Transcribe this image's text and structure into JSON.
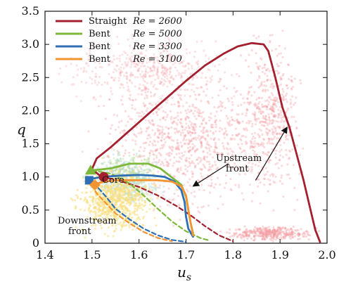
{
  "chart_data": {
    "type": "line",
    "xlabel": "u_s",
    "ylabel": "q",
    "xlim": [
      1.4,
      2.0
    ],
    "ylim": [
      0,
      3.5
    ],
    "xticks": [
      "1.4",
      "1.5",
      "1.6",
      "1.7",
      "1.8",
      "1.9",
      "2.0"
    ],
    "yticks": [
      "0",
      "0.5",
      "1.0",
      "1.5",
      "2.0",
      "2.5",
      "3.0",
      "3.5"
    ],
    "legend_position": "top-left",
    "legend": [
      {
        "type": "Straight",
        "re": "Re = 2600",
        "color": "#a3202f"
      },
      {
        "type": "Bent",
        "re": "Re = 5000",
        "color": "#7db83a"
      },
      {
        "type": "Bent",
        "re": "Re = 3300",
        "color": "#2f6fb5"
      },
      {
        "type": "Bent",
        "re": "Re = 3100",
        "color": "#f39432"
      }
    ],
    "annotations": {
      "core": "Core",
      "upstream_line1": "Upstream",
      "upstream_line2": "front",
      "downstream_line1": "Downstream",
      "downstream_line2": "front"
    },
    "background_colors": {
      "straight": "#f29aa0",
      "bent_a": "#f7df7d",
      "bent_b": "#9fd6e6",
      "bent_c": "#b9dc9b"
    },
    "series": [
      {
        "name": "Straight Re = 2600",
        "color": "#a3202f",
        "style": "solid",
        "points": [
          [
            1.52,
            1.0
          ],
          [
            1.5,
            1.12
          ],
          [
            1.51,
            1.28
          ],
          [
            1.54,
            1.45
          ],
          [
            1.58,
            1.7
          ],
          [
            1.62,
            1.95
          ],
          [
            1.66,
            2.2
          ],
          [
            1.7,
            2.45
          ],
          [
            1.74,
            2.68
          ],
          [
            1.78,
            2.86
          ],
          [
            1.81,
            2.97
          ],
          [
            1.84,
            3.02
          ],
          [
            1.865,
            3.0
          ],
          [
            1.875,
            2.9
          ],
          [
            1.89,
            2.5
          ],
          [
            1.905,
            2.05
          ],
          [
            1.92,
            1.75
          ],
          [
            1.935,
            1.35
          ],
          [
            1.95,
            0.95
          ],
          [
            1.965,
            0.5
          ],
          [
            1.975,
            0.2
          ],
          [
            1.985,
            0.02
          ]
        ]
      },
      {
        "name": "Straight Re = 2600",
        "color": "#a3202f",
        "style": "dashed",
        "points": [
          [
            1.52,
            1.0
          ],
          [
            1.55,
            0.96
          ],
          [
            1.6,
            0.85
          ],
          [
            1.64,
            0.72
          ],
          [
            1.68,
            0.56
          ],
          [
            1.71,
            0.42
          ],
          [
            1.74,
            0.26
          ],
          [
            1.77,
            0.12
          ],
          [
            1.8,
            0.03
          ]
        ]
      },
      {
        "name": "Bent Re = 5000",
        "color": "#7db83a",
        "style": "solid",
        "points": [
          [
            1.5,
            1.1
          ],
          [
            1.54,
            1.13
          ],
          [
            1.58,
            1.2
          ],
          [
            1.62,
            1.2
          ],
          [
            1.645,
            1.13
          ],
          [
            1.665,
            1.02
          ],
          [
            1.69,
            0.88
          ],
          [
            1.7,
            0.7
          ],
          [
            1.705,
            0.5
          ],
          [
            1.71,
            0.3
          ],
          [
            1.715,
            0.15
          ]
        ]
      },
      {
        "name": "Bent Re = 5000",
        "color": "#7db83a",
        "style": "dashed",
        "points": [
          [
            1.5,
            1.1
          ],
          [
            1.54,
            1.05
          ],
          [
            1.58,
            0.9
          ],
          [
            1.61,
            0.72
          ],
          [
            1.64,
            0.52
          ],
          [
            1.67,
            0.33
          ],
          [
            1.7,
            0.18
          ],
          [
            1.73,
            0.08
          ],
          [
            1.75,
            0.04
          ]
        ]
      },
      {
        "name": "Bent Re = 3300",
        "color": "#2f6fb5",
        "style": "solid",
        "points": [
          [
            1.49,
            0.96
          ],
          [
            1.52,
            1.0
          ],
          [
            1.56,
            1.02
          ],
          [
            1.6,
            1.03
          ],
          [
            1.63,
            1.02
          ],
          [
            1.655,
            1.0
          ],
          [
            1.675,
            0.93
          ],
          [
            1.69,
            0.8
          ],
          [
            1.697,
            0.62
          ],
          [
            1.7,
            0.4
          ],
          [
            1.705,
            0.22
          ],
          [
            1.715,
            0.1
          ]
        ]
      },
      {
        "name": "Bent Re = 3300",
        "color": "#2f6fb5",
        "style": "dashed",
        "points": [
          [
            1.49,
            0.96
          ],
          [
            1.51,
            0.86
          ],
          [
            1.53,
            0.7
          ],
          [
            1.55,
            0.52
          ],
          [
            1.58,
            0.36
          ],
          [
            1.61,
            0.22
          ],
          [
            1.64,
            0.12
          ],
          [
            1.67,
            0.05
          ],
          [
            1.7,
            0.02
          ]
        ]
      },
      {
        "name": "Bent Re = 3100",
        "color": "#f39432",
        "style": "solid",
        "points": [
          [
            1.5,
            0.88
          ],
          [
            1.52,
            0.92
          ],
          [
            1.55,
            0.95
          ],
          [
            1.6,
            0.95
          ],
          [
            1.64,
            0.95
          ],
          [
            1.67,
            0.93
          ],
          [
            1.69,
            0.86
          ],
          [
            1.7,
            0.72
          ],
          [
            1.705,
            0.5
          ],
          [
            1.71,
            0.3
          ],
          [
            1.715,
            0.12
          ]
        ]
      },
      {
        "name": "Bent Re = 3100",
        "color": "#f39432",
        "style": "dashed",
        "points": [
          [
            1.5,
            0.88
          ],
          [
            1.51,
            0.75
          ],
          [
            1.53,
            0.6
          ],
          [
            1.55,
            0.45
          ],
          [
            1.58,
            0.3
          ],
          [
            1.61,
            0.17
          ],
          [
            1.64,
            0.08
          ],
          [
            1.67,
            0.03
          ]
        ]
      }
    ],
    "markers": [
      {
        "shape": "circle",
        "x": 1.525,
        "y": 1.0,
        "color": "#a3202f"
      },
      {
        "shape": "triangle",
        "x": 1.497,
        "y": 1.1,
        "color": "#7db83a"
      },
      {
        "shape": "square",
        "x": 1.494,
        "y": 0.95,
        "color": "#2f6fb5"
      },
      {
        "shape": "diamond",
        "x": 1.506,
        "y": 0.88,
        "color": "#f39432"
      }
    ],
    "annotation_points": {
      "upstream_arrow_1": [
        [
          1.848,
          0.95
        ],
        [
          1.915,
          1.75
        ]
      ],
      "upstream_arrow_2": [
        [
          1.79,
          1.2
        ],
        [
          1.715,
          0.86
        ]
      ]
    }
  }
}
